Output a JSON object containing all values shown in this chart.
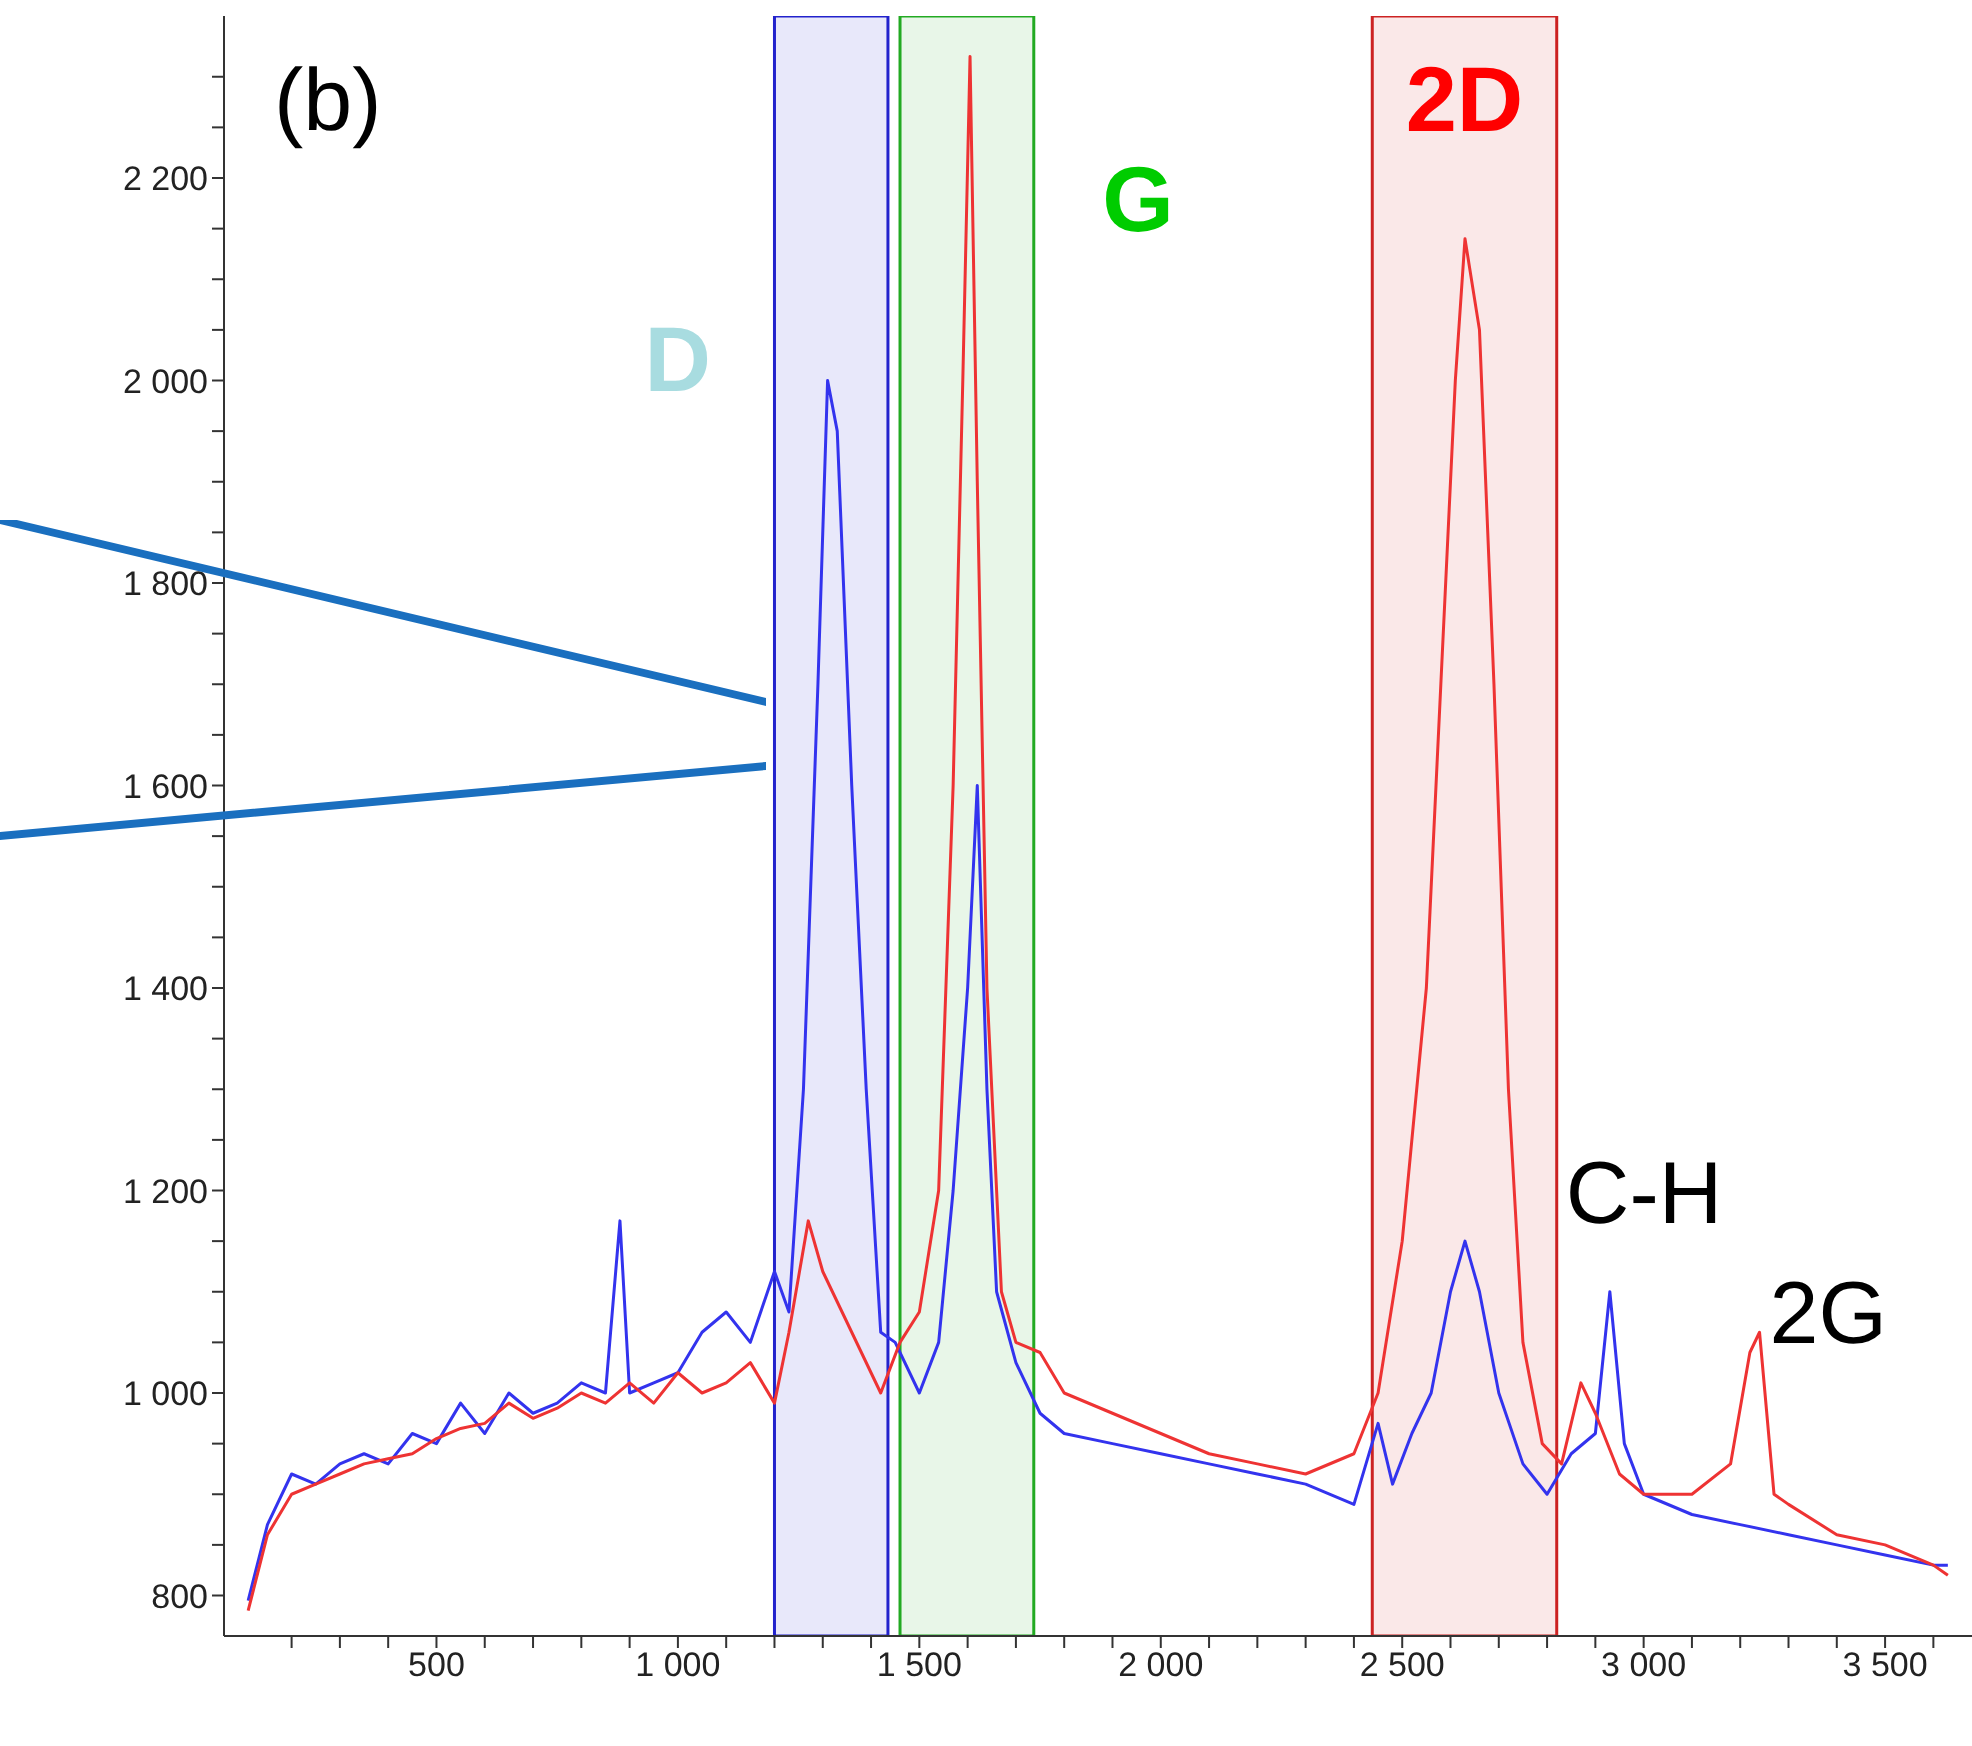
{
  "chart_data": {
    "type": "line",
    "xlim": [
      60,
      3680
    ],
    "ylim": [
      760,
      2360
    ],
    "xticks": [
      {
        "value": 200,
        "label": null
      },
      {
        "value": 300,
        "label": null
      },
      {
        "value": 400,
        "label": null
      },
      500,
      {
        "value": 600,
        "label": null
      },
      {
        "value": 700,
        "label": null
      },
      {
        "value": 800,
        "label": null
      },
      {
        "value": 900,
        "label": null
      },
      {
        "value": 1000,
        "label": "1 000"
      },
      {
        "value": 1100,
        "label": null
      },
      {
        "value": 1200,
        "label": null
      },
      {
        "value": 1300,
        "label": null
      },
      {
        "value": 1400,
        "label": null
      },
      {
        "value": 1500,
        "label": "1 500"
      },
      {
        "value": 1600,
        "label": null
      },
      {
        "value": 1700,
        "label": null
      },
      {
        "value": 1800,
        "label": null
      },
      {
        "value": 1900,
        "label": null
      },
      {
        "value": 2000,
        "label": "2 000"
      },
      {
        "value": 2100,
        "label": null
      },
      {
        "value": 2200,
        "label": null
      },
      {
        "value": 2300,
        "label": null
      },
      {
        "value": 2400,
        "label": null
      },
      {
        "value": 2500,
        "label": "2 500"
      },
      {
        "value": 2600,
        "label": null
      },
      {
        "value": 2700,
        "label": null
      },
      {
        "value": 2800,
        "label": null
      },
      {
        "value": 2900,
        "label": null
      },
      {
        "value": 3000,
        "label": "3 000"
      },
      {
        "value": 3100,
        "label": null
      },
      {
        "value": 3200,
        "label": null
      },
      {
        "value": 3300,
        "label": null
      },
      {
        "value": 3400,
        "label": null
      },
      {
        "value": 3500,
        "label": "3 500"
      },
      {
        "value": 3600,
        "label": null
      }
    ],
    "yticks": [
      800,
      {
        "value": 850,
        "label": null
      },
      {
        "value": 900,
        "label": null
      },
      {
        "value": 950,
        "label": null
      },
      {
        "value": 1000,
        "label": "1 000"
      },
      {
        "value": 1050,
        "label": null
      },
      {
        "value": 1100,
        "label": null
      },
      {
        "value": 1150,
        "label": null
      },
      {
        "value": 1200,
        "label": "1 200"
      },
      {
        "value": 1250,
        "label": null
      },
      {
        "value": 1300,
        "label": null
      },
      {
        "value": 1350,
        "label": null
      },
      {
        "value": 1400,
        "label": "1 400"
      },
      {
        "value": 1450,
        "label": null
      },
      {
        "value": 1500,
        "label": null
      },
      {
        "value": 1550,
        "label": null
      },
      {
        "value": 1600,
        "label": "1 600"
      },
      {
        "value": 1650,
        "label": null
      },
      {
        "value": 1700,
        "label": null
      },
      {
        "value": 1750,
        "label": null
      },
      {
        "value": 1800,
        "label": "1 800"
      },
      {
        "value": 1850,
        "label": null
      },
      {
        "value": 1900,
        "label": null
      },
      {
        "value": 1950,
        "label": null
      },
      {
        "value": 2000,
        "label": "2 000"
      },
      {
        "value": 2050,
        "label": null
      },
      {
        "value": 2100,
        "label": null
      },
      {
        "value": 2150,
        "label": null
      },
      {
        "value": 2200,
        "label": "2 200"
      },
      {
        "value": 2250,
        "label": null
      },
      {
        "value": 2300,
        "label": null
      }
    ],
    "series": [
      {
        "color": "#3333ee",
        "x": [
          110,
          150,
          200,
          250,
          300,
          350,
          400,
          450,
          500,
          550,
          600,
          650,
          700,
          750,
          800,
          850,
          880,
          900,
          950,
          1000,
          1050,
          1100,
          1150,
          1200,
          1230,
          1260,
          1290,
          1310,
          1330,
          1360,
          1390,
          1420,
          1450,
          1500,
          1540,
          1570,
          1600,
          1620,
          1640,
          1660,
          1700,
          1750,
          1800,
          1900,
          2000,
          2100,
          2200,
          2300,
          2400,
          2450,
          2480,
          2520,
          2560,
          2600,
          2630,
          2660,
          2700,
          2750,
          2800,
          2850,
          2900,
          2930,
          2960,
          3000,
          3100,
          3200,
          3300,
          3400,
          3500,
          3600,
          3630
        ],
        "values": [
          795,
          870,
          920,
          910,
          930,
          940,
          930,
          960,
          950,
          990,
          960,
          1000,
          980,
          990,
          1010,
          1000,
          1170,
          1000,
          1010,
          1020,
          1060,
          1080,
          1050,
          1120,
          1080,
          1300,
          1700,
          2000,
          1950,
          1600,
          1300,
          1060,
          1050,
          1000,
          1050,
          1200,
          1400,
          1600,
          1300,
          1100,
          1030,
          980,
          960,
          950,
          940,
          930,
          920,
          910,
          890,
          970,
          910,
          960,
          1000,
          1100,
          1150,
          1100,
          1000,
          930,
          900,
          940,
          960,
          1100,
          950,
          900,
          880,
          870,
          860,
          850,
          840,
          830,
          830
        ]
      },
      {
        "color": "#ee3333",
        "x": [
          110,
          150,
          200,
          250,
          300,
          350,
          400,
          450,
          500,
          550,
          600,
          650,
          700,
          750,
          800,
          850,
          900,
          950,
          1000,
          1050,
          1100,
          1150,
          1200,
          1230,
          1270,
          1300,
          1340,
          1380,
          1420,
          1460,
          1500,
          1540,
          1570,
          1590,
          1605,
          1620,
          1640,
          1670,
          1700,
          1750,
          1800,
          1900,
          2000,
          2100,
          2200,
          2300,
          2400,
          2450,
          2500,
          2550,
          2580,
          2610,
          2630,
          2660,
          2690,
          2720,
          2750,
          2790,
          2830,
          2870,
          2900,
          2950,
          3000,
          3100,
          3180,
          3220,
          3240,
          3270,
          3300,
          3400,
          3500,
          3600,
          3630
        ],
        "values": [
          785,
          860,
          900,
          910,
          920,
          930,
          935,
          940,
          955,
          965,
          970,
          990,
          975,
          985,
          1000,
          990,
          1010,
          990,
          1020,
          1000,
          1010,
          1030,
          990,
          1060,
          1170,
          1120,
          1080,
          1040,
          1000,
          1050,
          1080,
          1200,
          1600,
          2000,
          2320,
          1900,
          1400,
          1100,
          1050,
          1040,
          1000,
          980,
          960,
          940,
          930,
          920,
          940,
          1000,
          1150,
          1400,
          1700,
          2000,
          2140,
          2050,
          1700,
          1300,
          1050,
          950,
          930,
          1010,
          980,
          920,
          900,
          900,
          930,
          1040,
          1060,
          900,
          890,
          860,
          850,
          830,
          820
        ]
      }
    ],
    "bands": [
      {
        "axis": "x",
        "from": 1200,
        "to": 1435,
        "label": "D",
        "color": "#2222cc"
      },
      {
        "axis": "x",
        "from": 1460,
        "to": 1737,
        "label": "G",
        "color": "#22aa22"
      },
      {
        "axis": "x",
        "from": 2438,
        "to": 2820,
        "label": "2D",
        "color": "#cc2222"
      }
    ],
    "annotations": [
      "(b)",
      {
        "text": "C-H",
        "x": 2930,
        "y": 1100
      },
      {
        "text": "2G",
        "x": 3240,
        "y": 1060
      }
    ]
  }
}
